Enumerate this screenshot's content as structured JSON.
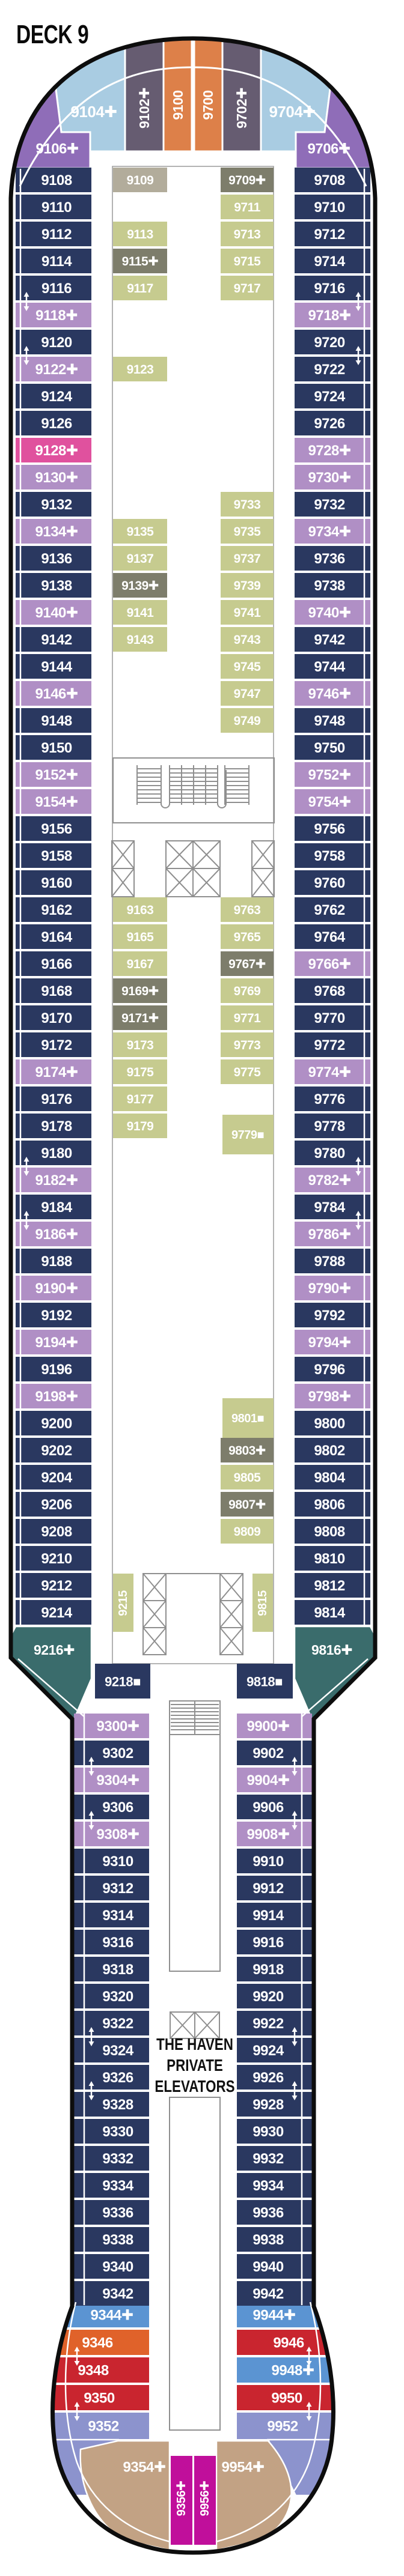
{
  "title": "DECK 9",
  "haven_label": {
    "lines": [
      "THE HAVEN",
      "PRIVATE",
      "ELEVATORS"
    ]
  },
  "palette": {
    "navy": "#2a3860",
    "lilac": "#b08fc5",
    "pink": "#e0519e",
    "teal": "#3a6c6c",
    "purple": "#8f6db8",
    "lightblue": "#a9cce2",
    "mauve": "#665c71",
    "orangeBow": "#dd8049",
    "olive": "#c6cb8f",
    "gray": "#7d7d6b",
    "tangray": "#b2ac9b",
    "blue": "#5b94d2",
    "red": "#c9252f",
    "orange": "#e0622a",
    "periwinkle": "#8c93cd",
    "magenta": "#c00f9b",
    "tan": "#c2a284",
    "hull": "#0d0d0d",
    "line_gray": "#8f8f8f",
    "label_white": "#ffffff"
  },
  "bow": {
    "wedges": [
      [
        "9104+",
        "lightblue"
      ],
      [
        "9102+",
        "mauve"
      ],
      [
        "9100",
        "orangeBow"
      ],
      [
        "9700",
        "orangeBow"
      ],
      [
        "9702+",
        "mauve"
      ],
      [
        "9704+",
        "lightblue"
      ],
      [
        "9106+",
        "purple"
      ],
      [
        "9706+",
        "purple"
      ]
    ]
  },
  "forward": {
    "left_outer": [
      [
        "9108",
        "navy"
      ],
      [
        "9110",
        "navy"
      ],
      [
        "9112",
        "navy"
      ],
      [
        "9114",
        "navy"
      ],
      [
        "9116",
        "navy"
      ],
      [
        "9118+",
        "lilac"
      ],
      [
        "9120",
        "navy"
      ],
      [
        "9122+",
        "lilac"
      ],
      [
        "9124",
        "navy"
      ],
      [
        "9126",
        "navy"
      ],
      [
        "9128+",
        "pink"
      ],
      [
        "9130+",
        "lilac"
      ],
      [
        "9132",
        "navy"
      ],
      [
        "9134+",
        "lilac"
      ],
      [
        "9136",
        "navy"
      ],
      [
        "9138",
        "navy"
      ],
      [
        "9140+",
        "lilac"
      ],
      [
        "9142",
        "navy"
      ],
      [
        "9144",
        "navy"
      ],
      [
        "9146+",
        "lilac"
      ],
      [
        "9148",
        "navy"
      ],
      [
        "9150",
        "navy"
      ],
      [
        "9152+",
        "lilac"
      ],
      [
        "9154+",
        "lilac"
      ],
      [
        "9156",
        "navy"
      ],
      [
        "9158",
        "navy"
      ],
      [
        "9160",
        "navy"
      ],
      [
        "9162",
        "navy"
      ],
      [
        "9164",
        "navy"
      ],
      [
        "9166",
        "navy"
      ],
      [
        "9168",
        "navy"
      ],
      [
        "9170",
        "navy"
      ],
      [
        "9172",
        "navy"
      ],
      [
        "9174+",
        "lilac"
      ],
      [
        "9176",
        "navy"
      ],
      [
        "9178",
        "navy"
      ],
      [
        "9180",
        "navy"
      ],
      [
        "9182+",
        "lilac"
      ],
      [
        "9184",
        "navy"
      ],
      [
        "9186+",
        "lilac"
      ],
      [
        "9188",
        "navy"
      ],
      [
        "9190+",
        "lilac"
      ],
      [
        "9192",
        "navy"
      ],
      [
        "9194+",
        "lilac"
      ],
      [
        "9196",
        "navy"
      ],
      [
        "9198+",
        "lilac"
      ],
      [
        "9200",
        "navy"
      ],
      [
        "9202",
        "navy"
      ],
      [
        "9204",
        "navy"
      ],
      [
        "9206",
        "navy"
      ],
      [
        "9208",
        "navy"
      ],
      [
        "9210",
        "navy"
      ],
      [
        "9212",
        "navy"
      ],
      [
        "9214",
        "navy"
      ]
    ],
    "right_outer": [
      [
        "9708",
        "navy"
      ],
      [
        "9710",
        "navy"
      ],
      [
        "9712",
        "navy"
      ],
      [
        "9714",
        "navy"
      ],
      [
        "9716",
        "navy"
      ],
      [
        "9718+",
        "lilac"
      ],
      [
        "9720",
        "navy"
      ],
      [
        "9722",
        "navy"
      ],
      [
        "9724",
        "navy"
      ],
      [
        "9726",
        "navy"
      ],
      [
        "9728+",
        "lilac"
      ],
      [
        "9730+",
        "lilac"
      ],
      [
        "9732",
        "navy"
      ],
      [
        "9734+",
        "lilac"
      ],
      [
        "9736",
        "navy"
      ],
      [
        "9738",
        "navy"
      ],
      [
        "9740+",
        "lilac"
      ],
      [
        "9742",
        "navy"
      ],
      [
        "9744",
        "navy"
      ],
      [
        "9746+",
        "lilac"
      ],
      [
        "9748",
        "navy"
      ],
      [
        "9750",
        "navy"
      ],
      [
        "9752+",
        "lilac"
      ],
      [
        "9754+",
        "lilac"
      ],
      [
        "9756",
        "navy"
      ],
      [
        "9758",
        "navy"
      ],
      [
        "9760",
        "navy"
      ],
      [
        "9762",
        "navy"
      ],
      [
        "9764",
        "navy"
      ],
      [
        "9766+",
        "lilac"
      ],
      [
        "9768",
        "navy"
      ],
      [
        "9770",
        "navy"
      ],
      [
        "9772",
        "navy"
      ],
      [
        "9774+",
        "lilac"
      ],
      [
        "9776",
        "navy"
      ],
      [
        "9778",
        "navy"
      ],
      [
        "9780",
        "navy"
      ],
      [
        "9782+",
        "lilac"
      ],
      [
        "9784",
        "navy"
      ],
      [
        "9786+",
        "lilac"
      ],
      [
        "9788",
        "navy"
      ],
      [
        "9790+",
        "lilac"
      ],
      [
        "9792",
        "navy"
      ],
      [
        "9794+",
        "lilac"
      ],
      [
        "9796",
        "navy"
      ],
      [
        "9798+",
        "lilac"
      ],
      [
        "9800",
        "navy"
      ],
      [
        "9802",
        "navy"
      ],
      [
        "9804",
        "navy"
      ],
      [
        "9806",
        "navy"
      ],
      [
        "9808",
        "navy"
      ],
      [
        "9810",
        "navy"
      ],
      [
        "9812",
        "navy"
      ],
      [
        "9814",
        "navy"
      ]
    ],
    "inner_left": [
      [
        "9109",
        "tangray",
        0
      ],
      [
        "9113",
        "olive",
        2
      ],
      [
        "9115+",
        "gray",
        3
      ],
      [
        "9117",
        "olive",
        4
      ],
      [
        "9123",
        "olive",
        7
      ],
      [
        "9135",
        "olive",
        13
      ],
      [
        "9137",
        "olive",
        14
      ],
      [
        "9139+",
        "gray",
        15
      ],
      [
        "9141",
        "olive",
        16
      ],
      [
        "9143",
        "olive",
        17
      ],
      [
        "9163",
        "olive",
        27
      ],
      [
        "9165",
        "olive",
        28
      ],
      [
        "9167",
        "olive",
        29
      ],
      [
        "9169+",
        "gray",
        30
      ],
      [
        "9171+",
        "gray",
        31
      ],
      [
        "9173",
        "olive",
        32
      ],
      [
        "9175",
        "olive",
        33
      ],
      [
        "9177",
        "olive",
        34
      ],
      [
        "9179",
        "olive",
        35
      ]
    ],
    "inner_right": [
      [
        "9709+",
        "gray",
        0
      ],
      [
        "9711",
        "olive",
        1
      ],
      [
        "9713",
        "olive",
        2
      ],
      [
        "9715",
        "olive",
        3
      ],
      [
        "9717",
        "olive",
        4
      ],
      [
        "9733",
        "olive",
        12
      ],
      [
        "9735",
        "olive",
        13
      ],
      [
        "9737",
        "olive",
        14
      ],
      [
        "9739",
        "olive",
        15
      ],
      [
        "9741",
        "olive",
        16
      ],
      [
        "9743",
        "olive",
        17
      ],
      [
        "9745",
        "olive",
        18
      ],
      [
        "9747",
        "olive",
        19
      ],
      [
        "9749",
        "olive",
        20
      ],
      [
        "9763",
        "olive",
        27
      ],
      [
        "9765",
        "olive",
        28
      ],
      [
        "9767+",
        "gray",
        29
      ],
      [
        "9769",
        "olive",
        30
      ],
      [
        "9771",
        "olive",
        31
      ],
      [
        "9773",
        "olive",
        32
      ],
      [
        "9775",
        "olive",
        33
      ],
      [
        "9803+",
        "gray",
        47
      ],
      [
        "9805",
        "olive",
        48
      ],
      [
        "9807+",
        "gray",
        49
      ],
      [
        "9809",
        "olive",
        50
      ]
    ],
    "offset_cabins": [
      [
        "9779■",
        "olive",
        1856
      ],
      [
        "9801■",
        "olive",
        2328
      ]
    ],
    "inner_left_vertical": [
      "9215",
      "olive"
    ],
    "inner_right_vertical": [
      "9815",
      "olive"
    ],
    "taper_left": [
      "9216+",
      "teal"
    ],
    "taper_right": [
      "9816+",
      "teal"
    ]
  },
  "aft": {
    "gateway_left": [
      "9218■",
      "navy"
    ],
    "gateway_right": [
      "9818■",
      "navy"
    ],
    "left": [
      [
        "9300+",
        "lilac"
      ],
      [
        "9302",
        "navy"
      ],
      [
        "9304+",
        "lilac"
      ],
      [
        "9306",
        "navy"
      ],
      [
        "9308+",
        "lilac"
      ],
      [
        "9310",
        "navy"
      ],
      [
        "9312",
        "navy"
      ],
      [
        "9314",
        "navy"
      ],
      [
        "9316",
        "navy"
      ],
      [
        "9318",
        "navy"
      ],
      [
        "9320",
        "navy"
      ],
      [
        "9322",
        "navy"
      ],
      [
        "9324",
        "navy"
      ],
      [
        "9326",
        "navy"
      ],
      [
        "9328",
        "navy"
      ],
      [
        "9330",
        "navy"
      ],
      [
        "9332",
        "navy"
      ],
      [
        "9334",
        "navy"
      ],
      [
        "9336",
        "navy"
      ],
      [
        "9338",
        "navy"
      ],
      [
        "9340",
        "navy"
      ],
      [
        "9342",
        "navy"
      ]
    ],
    "right": [
      [
        "9900+",
        "lilac"
      ],
      [
        "9902",
        "navy"
      ],
      [
        "9904+",
        "lilac"
      ],
      [
        "9906",
        "navy"
      ],
      [
        "9908+",
        "lilac"
      ],
      [
        "9910",
        "navy"
      ],
      [
        "9912",
        "navy"
      ],
      [
        "9914",
        "navy"
      ],
      [
        "9916",
        "navy"
      ],
      [
        "9918",
        "navy"
      ],
      [
        "9920",
        "navy"
      ],
      [
        "9922",
        "navy"
      ],
      [
        "9924",
        "navy"
      ],
      [
        "9926",
        "navy"
      ],
      [
        "9928",
        "navy"
      ],
      [
        "9930",
        "navy"
      ],
      [
        "9932",
        "navy"
      ],
      [
        "9934",
        "navy"
      ],
      [
        "9936",
        "navy"
      ],
      [
        "9938",
        "navy"
      ],
      [
        "9940",
        "navy"
      ],
      [
        "9942",
        "navy"
      ]
    ]
  },
  "stern": {
    "left_bands": [
      [
        "9344+",
        "blue"
      ],
      [
        "9346",
        "orange"
      ],
      [
        "9348",
        "red"
      ],
      [
        "9350",
        "red"
      ],
      [
        "9352",
        "periwinkle"
      ]
    ],
    "right_bands": [
      [
        "9944+",
        "blue"
      ],
      [
        "9946",
        "red"
      ],
      [
        "9948+",
        "blue"
      ],
      [
        "9950",
        "red"
      ],
      [
        "9952",
        "periwinkle"
      ]
    ],
    "wedge_left": [
      "9354+",
      "tan"
    ],
    "wedge_right": [
      "9954+",
      "tan"
    ],
    "vertical_left": [
      "9356+",
      "magenta"
    ],
    "vertical_right": [
      "9956+",
      "magenta"
    ]
  },
  "connectors": [
    {
      "side": "L",
      "row": 5
    },
    {
      "side": "L",
      "row": 7
    },
    {
      "side": "L",
      "row": 37
    },
    {
      "side": "L",
      "row": 39
    },
    {
      "side": "R",
      "row": 5
    },
    {
      "side": "R",
      "row": 7
    },
    {
      "side": "R",
      "row": 37
    },
    {
      "side": "R",
      "row": 39
    },
    {
      "side": "AL",
      "row": 2
    },
    {
      "side": "AL",
      "row": 4
    },
    {
      "side": "AL",
      "row": 12
    },
    {
      "side": "AL",
      "row": 14
    },
    {
      "side": "AR",
      "row": 2
    },
    {
      "side": "AR",
      "row": 4
    },
    {
      "side": "AR",
      "row": 12
    },
    {
      "side": "AR",
      "row": 14
    },
    {
      "side": "SL",
      "row": 2
    },
    {
      "side": "SL",
      "row": 4
    },
    {
      "side": "SR",
      "row": 2
    },
    {
      "side": "SR",
      "row": 4
    }
  ]
}
